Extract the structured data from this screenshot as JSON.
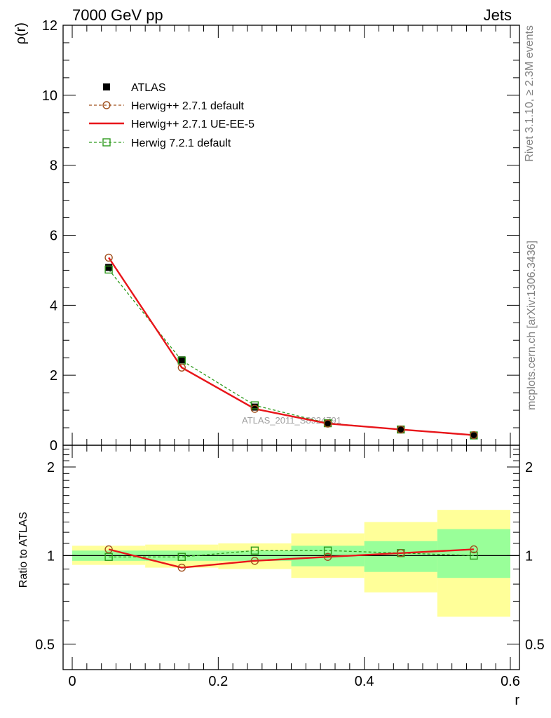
{
  "header": {
    "left_title": "7000 GeV pp",
    "right_title": "Jets"
  },
  "side_texts": {
    "rivet": "Rivet 3.1.10, ≥ 2.3M events",
    "mcplots": "mcplots.cern.ch [arXiv:1306.3436]"
  },
  "watermark": "ATLAS_2011_S8924791",
  "chart_data": [
    {
      "type": "scatter",
      "panel": "main",
      "ylabel": "ρ(r)",
      "xlabel": "",
      "xlim": [
        -0.0125,
        0.6125
      ],
      "ylim": [
        0,
        12
      ],
      "yticks": [
        0,
        2,
        4,
        6,
        8,
        10,
        12
      ],
      "ytick_labels": [
        "0",
        "2",
        "4",
        "6",
        "8",
        "10",
        "12"
      ],
      "legend_position": "upper-left",
      "x": [
        0.05,
        0.15,
        0.25,
        0.35,
        0.45,
        0.55
      ],
      "series": [
        {
          "name": "ATLAS",
          "style": "data-points",
          "color": "#000000",
          "values": [
            5.08,
            2.44,
            1.09,
            0.62,
            0.44,
            0.28
          ]
        },
        {
          "name": "Herwig++ 2.7.1 default",
          "style": "dashed-circle",
          "color": "#a0501e",
          "values": [
            5.36,
            2.22,
            1.04,
            0.62,
            0.45,
            0.29
          ]
        },
        {
          "name": "Herwig++ 2.7.1 UE-EE-5",
          "style": "solid",
          "color": "#e8151a",
          "values": [
            5.36,
            2.22,
            1.04,
            0.62,
            0.45,
            0.29
          ]
        },
        {
          "name": "Herwig 7.2.1 default",
          "style": "dashed-square",
          "color": "#2f9b1e",
          "values": [
            5.02,
            2.42,
            1.14,
            0.63,
            0.45,
            0.28
          ]
        }
      ]
    },
    {
      "type": "line",
      "panel": "ratio",
      "ylabel": "Ratio to ATLAS",
      "xlabel": "r",
      "xlim": [
        -0.0125,
        0.6125
      ],
      "ylim": [
        0.41,
        2.37
      ],
      "yscale": "log",
      "yticks": [
        0.5,
        1,
        2
      ],
      "ytick_labels": [
        "0.5",
        "1",
        "2"
      ],
      "xticks": [
        0,
        0.2,
        0.4,
        0.6
      ],
      "xtick_labels": [
        "0",
        "0.2",
        "0.4",
        "0.6"
      ],
      "x": [
        0.05,
        0.15,
        0.25,
        0.35,
        0.45,
        0.55
      ],
      "band_edges": [
        0.0,
        0.1,
        0.2,
        0.3,
        0.4,
        0.5,
        0.6
      ],
      "stat_band": [
        [
          0.96,
          1.04
        ],
        [
          0.96,
          1.04
        ],
        [
          0.96,
          1.04
        ],
        [
          0.92,
          1.08
        ],
        [
          0.88,
          1.12
        ],
        [
          0.84,
          1.23
        ]
      ],
      "total_band": [
        [
          0.93,
          1.08
        ],
        [
          0.91,
          1.09
        ],
        [
          0.9,
          1.1
        ],
        [
          0.84,
          1.19
        ],
        [
          0.75,
          1.3
        ],
        [
          0.62,
          1.43
        ]
      ],
      "series": [
        {
          "name": "Herwig++ 2.7.1 default",
          "style": "dashed-circle",
          "color": "#a0501e",
          "values": [
            1.05,
            0.91,
            0.96,
            0.99,
            1.02,
            1.05
          ]
        },
        {
          "name": "Herwig++ 2.7.1 UE-EE-5",
          "style": "solid",
          "color": "#e8151a",
          "values": [
            1.05,
            0.91,
            0.96,
            0.99,
            1.02,
            1.05
          ]
        },
        {
          "name": "Herwig 7.2.1 default",
          "style": "dashed-square",
          "color": "#2f9b1e",
          "values": [
            0.99,
            0.99,
            1.04,
            1.04,
            1.02,
            1.0
          ]
        }
      ]
    }
  ],
  "colors": {
    "band_total": "#ffff99",
    "band_stat": "#99ff99",
    "axis": "#000000",
    "side_text": "#808080"
  }
}
